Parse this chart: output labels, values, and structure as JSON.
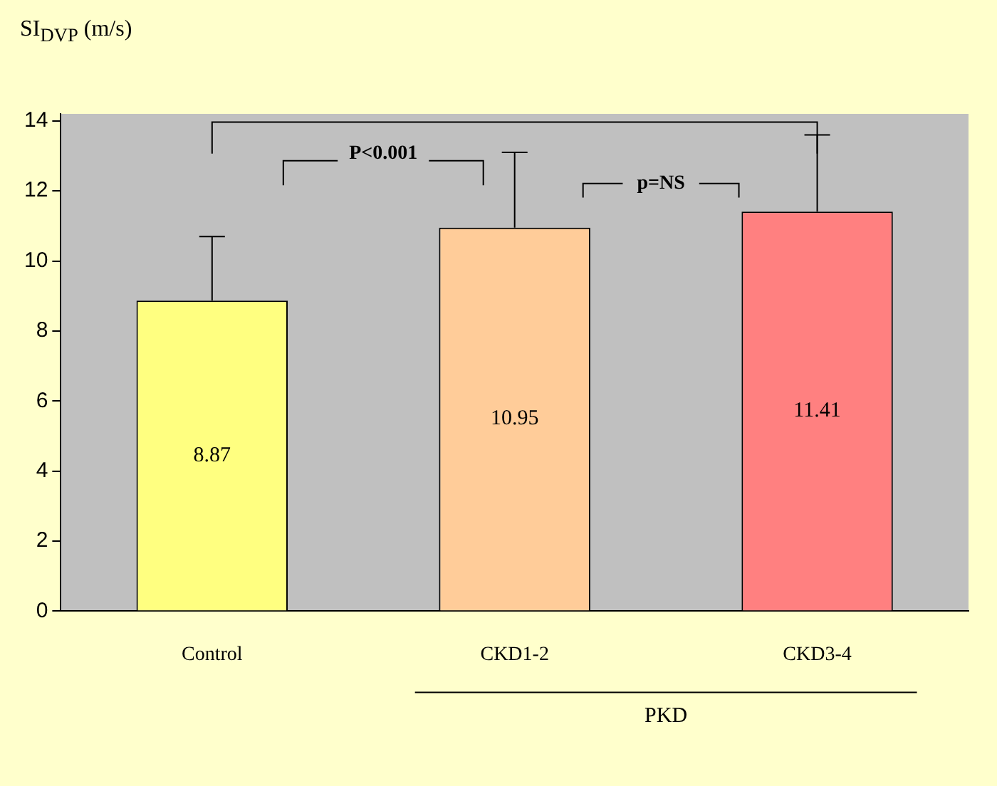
{
  "chart_data": {
    "type": "bar",
    "ylabel": "SI$_{DVP}$ (m/s)",
    "categories": [
      "Control",
      "CKD1-2",
      "CKD3-4"
    ],
    "values": [
      8.87,
      10.95,
      11.41
    ],
    "colors": [
      "#ffff80",
      "#ffcc99",
      "#ff8080"
    ],
    "errors": [
      [
        8.87,
        10.7
      ],
      [
        10.95,
        13.1
      ],
      [
        11.41,
        13.6
      ]
    ],
    "data_labels": true,
    "ylim": [
      0,
      14.2
    ],
    "yticks": [
      0,
      2,
      4,
      6,
      8,
      10,
      12,
      14
    ],
    "grid": false,
    "legend": false,
    "annotations": [
      "P<0.001",
      "p=NS",
      "PKD"
    ]
  }
}
